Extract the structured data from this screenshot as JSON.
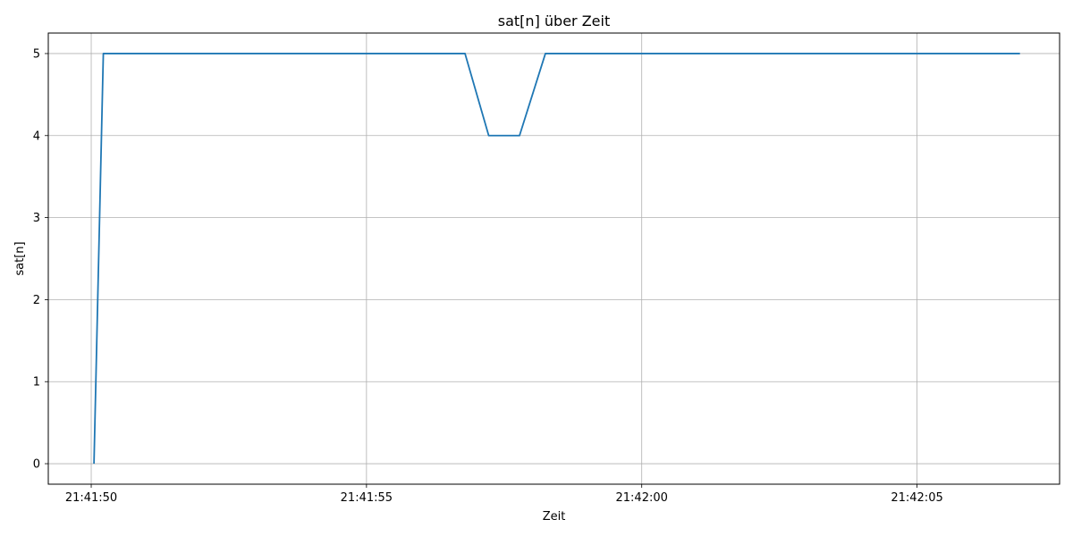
{
  "chart_data": {
    "type": "line",
    "title": "sat[n] über Zeit",
    "xlabel": "Zeit",
    "ylabel": "sat[n]",
    "x_tick_labels": [
      "21:41:50",
      "21:41:55",
      "21:42:00",
      "21:42:05"
    ],
    "x_ticks_seconds": [
      0,
      5,
      10,
      15
    ],
    "y_ticks": [
      0,
      1,
      2,
      3,
      4,
      5
    ],
    "xlim_seconds": [
      -0.78,
      17.59
    ],
    "ylim": [
      -0.25,
      5.25
    ],
    "grid": true,
    "line_color": "#1f77b4",
    "series": [
      {
        "x": [
          "21:41:50.05",
          "21:41:50.22",
          "21:41:56.79",
          "21:41:57.22",
          "21:41:57.78",
          "21:41:58.25",
          "21:42:06.87"
        ],
        "y": [
          0,
          5,
          5,
          4,
          4,
          5,
          5
        ]
      }
    ]
  }
}
